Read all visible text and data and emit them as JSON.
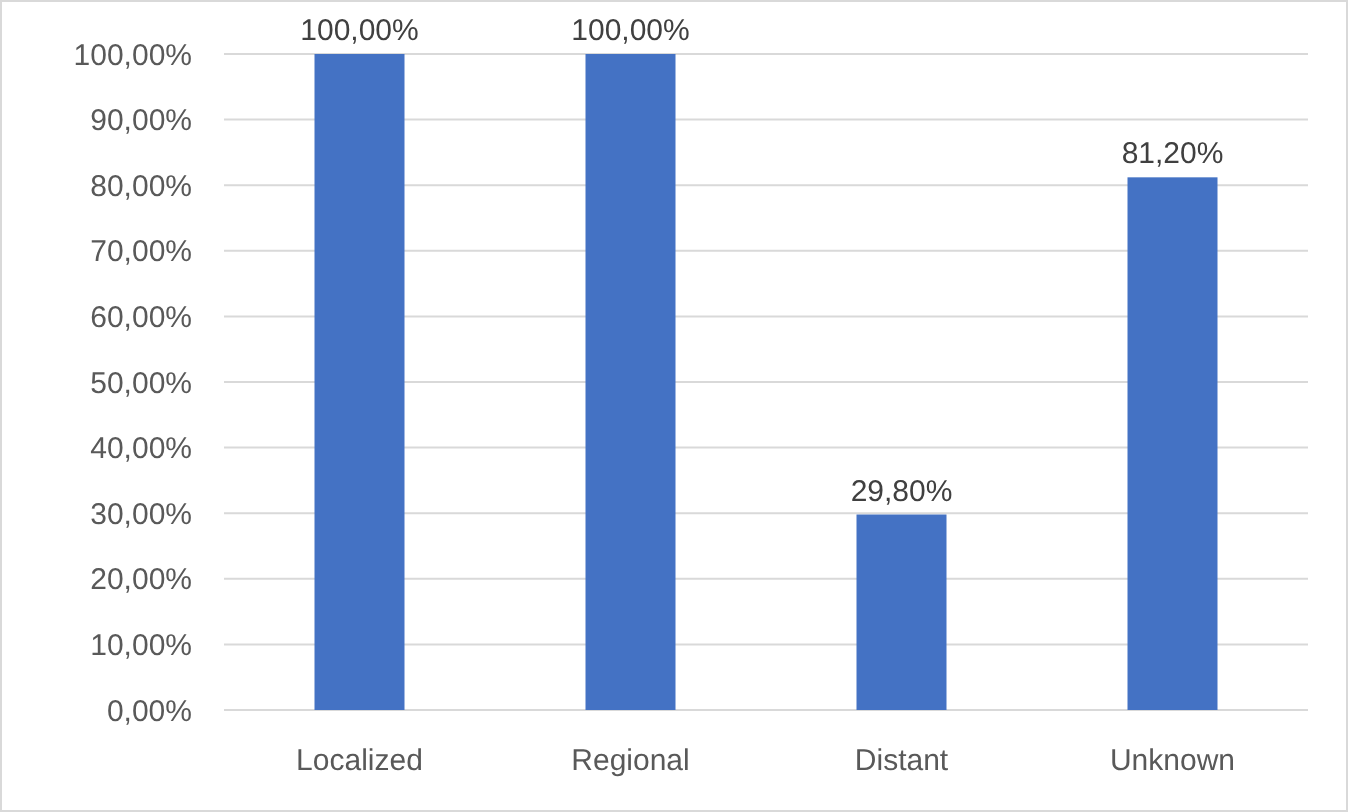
{
  "chart_data": {
    "type": "bar",
    "categories": [
      "Localized",
      "Regional",
      "Distant",
      "Unknown"
    ],
    "values": [
      100,
      100,
      29.8,
      81.2
    ],
    "value_labels": [
      "100,00%",
      "100,00%",
      "29,80%",
      "81,20%"
    ],
    "color": "#4472c4",
    "ylim": [
      0,
      100
    ],
    "yticks": [
      {
        "value": 0,
        "label": "0,00%"
      },
      {
        "value": 10,
        "label": "10,00%"
      },
      {
        "value": 20,
        "label": "20,00%"
      },
      {
        "value": 30,
        "label": "30,00%"
      },
      {
        "value": 40,
        "label": "40,00%"
      },
      {
        "value": 50,
        "label": "50,00%"
      },
      {
        "value": 60,
        "label": "60,00%"
      },
      {
        "value": 70,
        "label": "70,00%"
      },
      {
        "value": 80,
        "label": "80,00%"
      },
      {
        "value": 90,
        "label": "90,00%"
      },
      {
        "value": 100,
        "label": "100,00%"
      }
    ],
    "grid": "y"
  }
}
